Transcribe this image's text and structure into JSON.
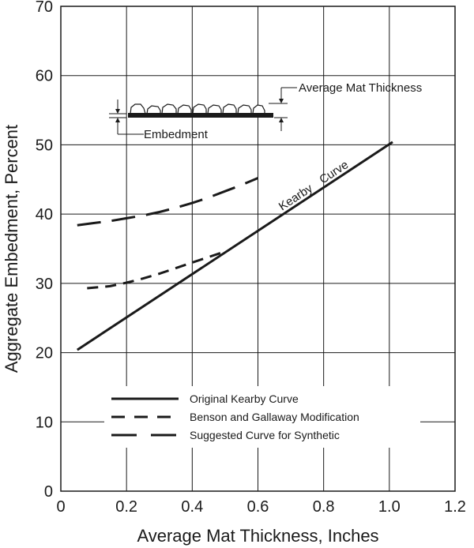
{
  "chart_data": {
    "type": "line",
    "title": "",
    "xlabel": "Average Mat Thickness, Inches",
    "ylabel": "Aggregate Embedment, Percent",
    "xlim": [
      0,
      1.2
    ],
    "ylim": [
      0,
      70
    ],
    "xticks": [
      "0",
      "0.2",
      "0.4",
      "0.6",
      "0.8",
      "1.0",
      "1.2"
    ],
    "yticks": [
      "0",
      "10",
      "20",
      "30",
      "40",
      "50",
      "60",
      "70"
    ],
    "grid": true,
    "legend_position": "bottom-left",
    "series": [
      {
        "name": "Original Kearby Curve",
        "style": "solid",
        "x": [
          0.05,
          1.01
        ],
        "y": [
          20.4,
          50.4
        ]
      },
      {
        "name": "Benson and Gallaway Modification",
        "style": "short-dash",
        "x": [
          0.08,
          0.15,
          0.2,
          0.25,
          0.3,
          0.35,
          0.4,
          0.45,
          0.5
        ],
        "y": [
          29.3,
          29.6,
          30.1,
          30.7,
          31.4,
          32.2,
          33.0,
          33.8,
          34.6
        ]
      },
      {
        "name": "Suggested Curve for Synthetic",
        "style": "long-dash",
        "x": [
          0.05,
          0.1,
          0.15,
          0.2,
          0.25,
          0.3,
          0.35,
          0.4,
          0.45,
          0.5,
          0.55,
          0.6
        ],
        "y": [
          38.4,
          38.7,
          39.0,
          39.4,
          39.8,
          40.3,
          40.9,
          41.6,
          42.4,
          43.3,
          44.2,
          45.2
        ]
      }
    ],
    "annotations": {
      "curve_label": "Kearby Curve",
      "inset_mat_label": "Average Mat Thickness",
      "inset_embed_label": "Embedment"
    }
  }
}
